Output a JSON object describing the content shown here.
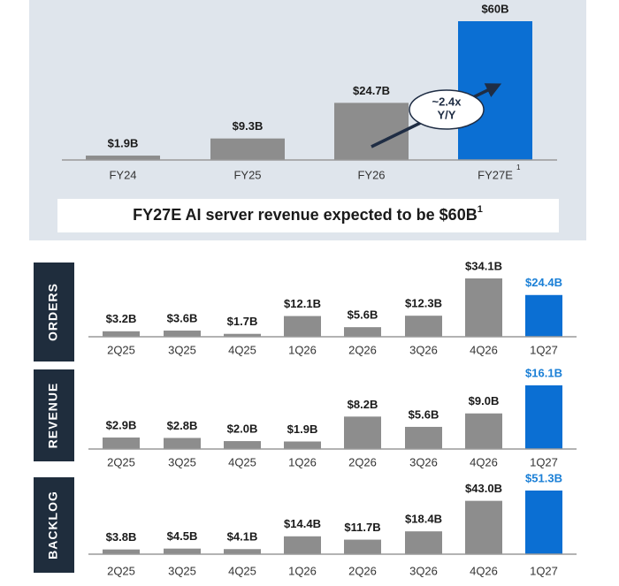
{
  "chart_data": [
    {
      "type": "bar",
      "categories": [
        "FY24",
        "FY25",
        "FY26",
        "FY27E"
      ],
      "category_footnote": "1",
      "values": [
        1.9,
        9.3,
        24.7,
        60
      ],
      "value_labels": [
        "$1.9B",
        "$9.3B",
        "$24.7B",
        "$60B"
      ],
      "colors": [
        "#8d8d8d",
        "#8d8d8d",
        "#8d8d8d",
        "#0b6fd3"
      ],
      "annotation": [
        "~2.4x",
        "Y/Y"
      ],
      "caption": [
        "FY27E AI server revenue expected to be ",
        "$60B",
        "1"
      ]
    },
    {
      "type": "bar",
      "label": "ORDERS",
      "categories": [
        "2Q25",
        "3Q25",
        "4Q25",
        "1Q26",
        "2Q26",
        "3Q26",
        "4Q26",
        "1Q27"
      ],
      "values": [
        3.2,
        3.6,
        1.7,
        12.1,
        5.6,
        12.3,
        34.1,
        24.4
      ],
      "value_labels": [
        "$3.2B",
        "$3.6B",
        "$1.7B",
        "$12.1B",
        "$5.6B",
        "$12.3B",
        "$34.1B",
        "$24.4B"
      ],
      "colors": [
        "#8d8d8d",
        "#8d8d8d",
        "#8d8d8d",
        "#8d8d8d",
        "#8d8d8d",
        "#8d8d8d",
        "#8d8d8d",
        "#0b6fd3"
      ],
      "label_colors": [
        "#1a1a1a",
        "#1a1a1a",
        "#1a1a1a",
        "#1a1a1a",
        "#1a1a1a",
        "#1a1a1a",
        "#1a1a1a",
        "#1a7fd6"
      ]
    },
    {
      "type": "bar",
      "label": "REVENUE",
      "categories": [
        "2Q25",
        "3Q25",
        "4Q25",
        "1Q26",
        "2Q26",
        "3Q26",
        "4Q26",
        "1Q27"
      ],
      "values": [
        2.9,
        2.8,
        2.0,
        1.9,
        8.2,
        5.6,
        9.0,
        16.1
      ],
      "value_labels": [
        "$2.9B",
        "$2.8B",
        "$2.0B",
        "$1.9B",
        "$8.2B",
        "$5.6B",
        "$9.0B",
        "$16.1B"
      ],
      "colors": [
        "#8d8d8d",
        "#8d8d8d",
        "#8d8d8d",
        "#8d8d8d",
        "#8d8d8d",
        "#8d8d8d",
        "#8d8d8d",
        "#0b6fd3"
      ],
      "label_colors": [
        "#1a1a1a",
        "#1a1a1a",
        "#1a1a1a",
        "#1a1a1a",
        "#1a1a1a",
        "#1a1a1a",
        "#1a1a1a",
        "#1a7fd6"
      ]
    },
    {
      "type": "bar",
      "label": "BACKLOG",
      "categories": [
        "2Q25",
        "3Q25",
        "4Q25",
        "1Q26",
        "2Q26",
        "3Q26",
        "4Q26",
        "1Q27"
      ],
      "values": [
        3.8,
        4.5,
        4.1,
        14.4,
        11.7,
        18.4,
        43.0,
        51.3
      ],
      "value_labels": [
        "$3.8B",
        "$4.5B",
        "$4.1B",
        "$14.4B",
        "$11.7B",
        "$18.4B",
        "$43.0B",
        "$51.3B"
      ],
      "colors": [
        "#8d8d8d",
        "#8d8d8d",
        "#8d8d8d",
        "#8d8d8d",
        "#8d8d8d",
        "#8d8d8d",
        "#8d8d8d",
        "#0b6fd3"
      ],
      "label_colors": [
        "#1a1a1a",
        "#1a1a1a",
        "#1a1a1a",
        "#1a1a1a",
        "#1a1a1a",
        "#1a1a1a",
        "#1a1a1a",
        "#1a7fd6"
      ]
    }
  ]
}
